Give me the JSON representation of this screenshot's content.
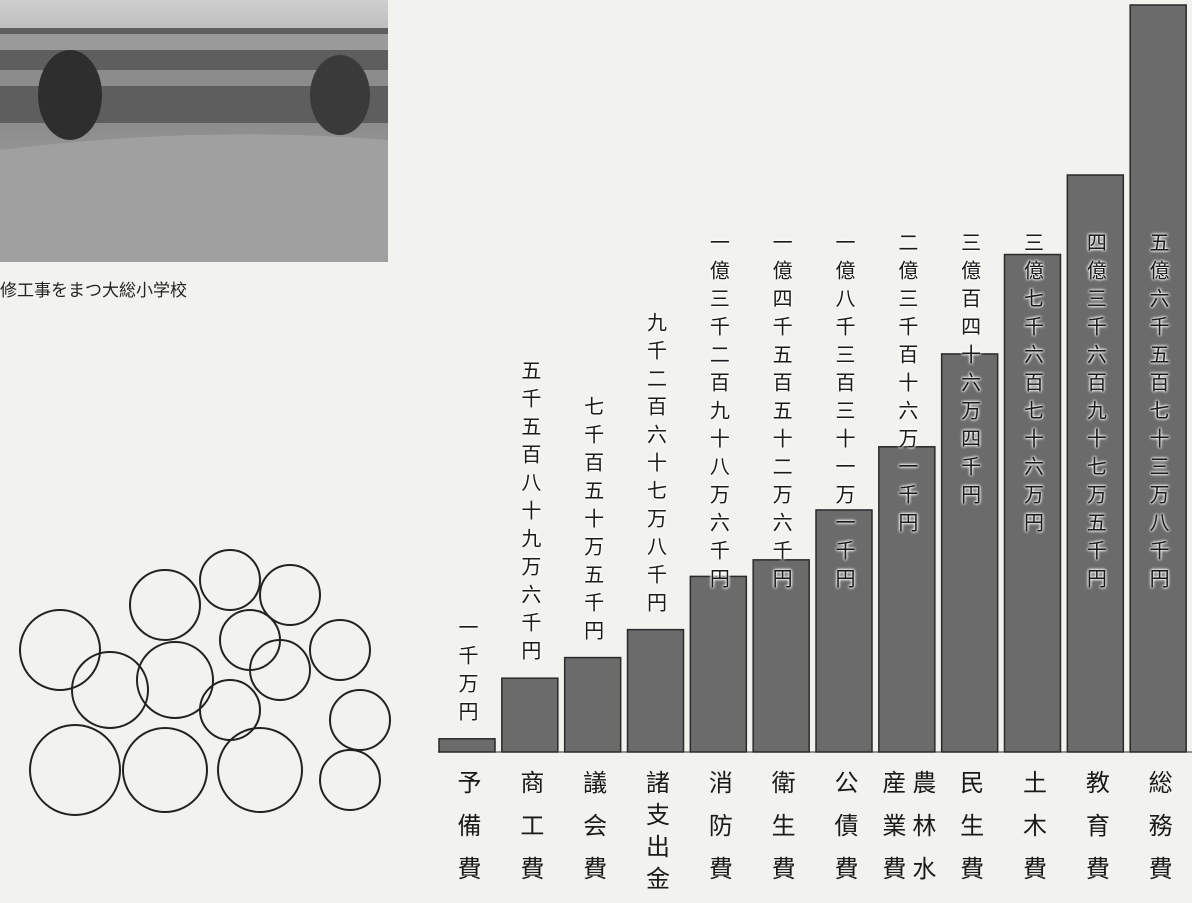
{
  "photo_caption": "修工事をまつ大総小学校",
  "chart_data": {
    "type": "bar",
    "categories": [
      "予備費",
      "商工費",
      "議会費",
      "諸支出金",
      "消防費",
      "衛生費",
      "公債費",
      "農林水産業費",
      "民生費",
      "土木費",
      "教育費",
      "総務費"
    ],
    "values": [
      10000000,
      55896000,
      71505000,
      92678000,
      132986000,
      145526000,
      183311000,
      231161000,
      301464000,
      376760000,
      436975000,
      565738000
    ],
    "value_labels": [
      "一千万円",
      "五千五百八十九万六千円",
      "七千百五十万五千円",
      "九千二百六十七万八千円",
      "一億三千二百九十八万六千円",
      "一億四千五百五十二万六千円",
      "一億八千三百三十一万一千円",
      "二億三千百十六万一千円",
      "三億百四十六万四千円",
      "三億七千六百七十六万円",
      "四億三千六百九十七万五千円",
      "五億六千五百七十三万八千円"
    ],
    "color": "#6b6b6b"
  }
}
